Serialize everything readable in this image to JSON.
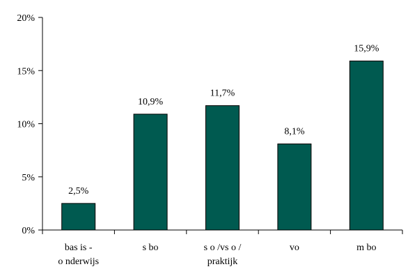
{
  "chart_data": {
    "type": "bar",
    "categories": [
      [
        "bas is -",
        "o nderwijs"
      ],
      [
        "s bo"
      ],
      [
        "s o /vs o /",
        "praktijk"
      ],
      [
        "vo"
      ],
      [
        "m bo"
      ]
    ],
    "values": [
      2.5,
      10.9,
      11.7,
      8.1,
      15.9
    ],
    "value_labels": [
      "2,5%",
      "10,9%",
      "11,7%",
      "8,1%",
      "15,9%"
    ],
    "ylim": [
      0,
      20
    ],
    "yticks": [
      0,
      5,
      10,
      15,
      20
    ],
    "ytick_labels": [
      "0%",
      "5%",
      "10%",
      "15%",
      "20%"
    ],
    "grid": false,
    "legend": "none",
    "colors": {
      "bar": "#005a50",
      "background": "#ffffff",
      "axis": "#000000"
    }
  }
}
